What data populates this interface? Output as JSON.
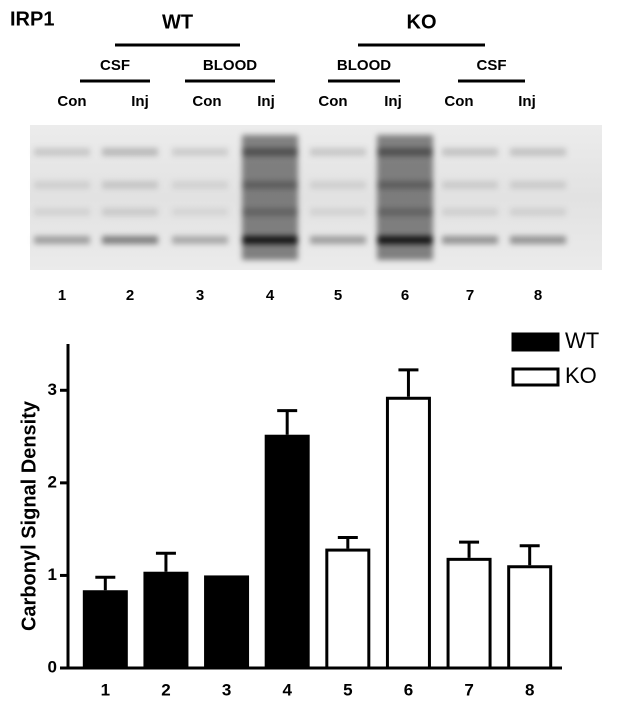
{
  "blot": {
    "protein_label": "IRP1",
    "groups": [
      {
        "label": "WT",
        "subgroups": [
          {
            "label": "CSF",
            "lanes": [
              "Con",
              "Inj"
            ]
          },
          {
            "label": "BLOOD",
            "lanes": [
              "Con",
              "Inj"
            ]
          }
        ]
      },
      {
        "label": "KO",
        "subgroups": [
          {
            "label": "BLOOD",
            "lanes": [
              "Con",
              "Inj"
            ]
          },
          {
            "label": "CSF",
            "lanes": [
              "Con",
              "Inj"
            ]
          }
        ]
      }
    ],
    "lane_numbers": [
      "1",
      "2",
      "3",
      "4",
      "5",
      "6",
      "7",
      "8"
    ]
  },
  "chart_data": {
    "type": "bar",
    "y_label": "Carbonyl Signal Density",
    "categories": [
      "1",
      "2",
      "3",
      "4",
      "5",
      "6",
      "7",
      "8"
    ],
    "series": [
      {
        "name": "WT",
        "color": "#000000",
        "values": [
          0.84,
          1.04,
          1.0,
          2.52,
          null,
          null,
          null,
          null
        ],
        "errors": [
          0.14,
          0.2,
          null,
          0.26,
          null,
          null,
          null,
          null
        ]
      },
      {
        "name": "KO",
        "color": "#ffffff",
        "values": [
          null,
          null,
          null,
          null,
          1.29,
          2.93,
          1.19,
          1.11
        ],
        "errors": [
          null,
          null,
          null,
          null,
          0.12,
          0.29,
          0.17,
          0.21
        ]
      }
    ],
    "ylim": [
      0,
      3.5
    ],
    "yticks": [
      0,
      1,
      2,
      3
    ],
    "legend": "top-right"
  }
}
